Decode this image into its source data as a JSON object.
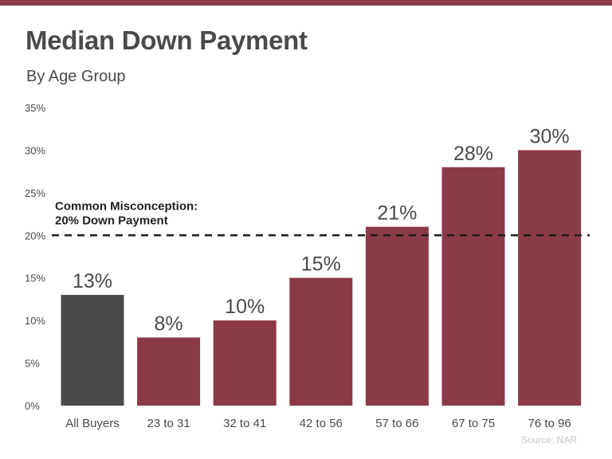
{
  "chart_data": {
    "type": "bar",
    "title": "Median Down Payment",
    "subtitle": "By Age Group",
    "categories": [
      "All Buyers",
      "23 to 31",
      "32 to 41",
      "42 to 56",
      "57 to 66",
      "67 to 75",
      "76 to 96"
    ],
    "values": [
      13,
      8,
      10,
      15,
      21,
      28,
      30
    ],
    "value_labels": [
      "13%",
      "8%",
      "10%",
      "15%",
      "21%",
      "28%",
      "30%"
    ],
    "bar_colors": [
      "#4a4a4a",
      "#8b3a47",
      "#8b3a47",
      "#8b3a47",
      "#8b3a47",
      "#8b3a47",
      "#8b3a47"
    ],
    "ylim": [
      0,
      35
    ],
    "yticks": [
      0,
      5,
      10,
      15,
      20,
      25,
      30,
      35
    ],
    "ytick_labels": [
      "0%",
      "5%",
      "10%",
      "15%",
      "20%",
      "25%",
      "30%",
      "35%"
    ],
    "xlabel": "",
    "ylabel": "",
    "grid": false,
    "legend": "none",
    "reference_line": {
      "value": 20,
      "style": "dashed",
      "label_line1": "Common Misconception:",
      "label_line2": "20% Down Payment"
    },
    "source": "Source: NAR"
  },
  "colors": {
    "accent": "#8b3a47",
    "highlight": "#4a4a4a",
    "text": "#4a4a4a",
    "source_text": "#c4c4c4"
  }
}
